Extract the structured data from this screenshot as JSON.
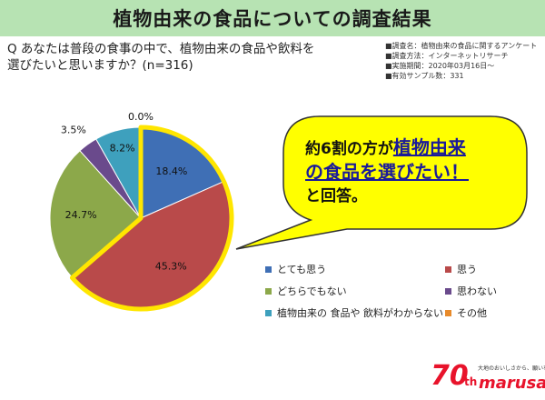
{
  "header": {
    "title": "植物由来の食品についての調査結果"
  },
  "question": {
    "line1": "Q あなたは普段の食事の中で、植物由来の食品や飲料を",
    "line2": "選びたいと思いますか？(n=316)"
  },
  "meta": [
    "■調査名：植物由来の食品に関するアンケート",
    "■調査方法：インターネットリサーチ",
    "■実施期間：2020年03月16日〜",
    "■有効サンプル数：331"
  ],
  "callout": {
    "pre": "約6割の方が",
    "em1": "植物由来",
    "em2": "の食品を選びたい！",
    "post": "と回答。"
  },
  "colors": {
    "highlight": "#ffe600",
    "callout_fill": "#ffff00",
    "title_bg": "#b7e3b3"
  },
  "chart_data": {
    "type": "pie",
    "categories": [
      "とても思う",
      "思う",
      "どちらでもない",
      "思わない",
      "植物由来の 食品や 飲料がわからない",
      "その他"
    ],
    "values": [
      18.4,
      45.3,
      24.7,
      3.5,
      8.2,
      0.0
    ],
    "labels": [
      "18.4%",
      "45.3%",
      "24.7%",
      "3.5%",
      "8.2%",
      "0.0%"
    ],
    "colors": [
      "#3f6fb5",
      "#b94a4a",
      "#8ca84a",
      "#6a4a8c",
      "#3ea0bd",
      "#e88a2a"
    ],
    "highlighted": [
      "とても思う",
      "思う"
    ],
    "legend_position": "bottom-right"
  },
  "logo": {
    "number": "70",
    "suffix": "th",
    "brand": "marusan",
    "tagline": "大地のおいしさから、願いを幸せを。"
  }
}
